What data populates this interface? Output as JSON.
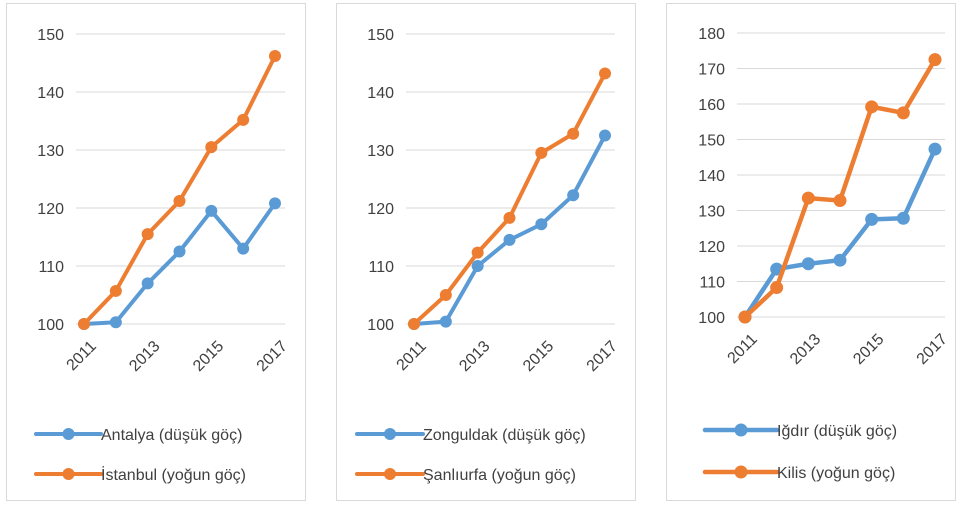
{
  "chart_data": [
    {
      "type": "line",
      "x": [
        "2011",
        "2012",
        "2013",
        "2014",
        "2015",
        "2016",
        "2017"
      ],
      "x_tick_labels": [
        "2011",
        "2013",
        "2015",
        "2017"
      ],
      "ylim": [
        100,
        150
      ],
      "yticks": [
        100,
        110,
        120,
        130,
        140,
        150
      ],
      "grid": true,
      "legend_position": "bottom",
      "series": [
        {
          "name": "Antalya (düşük göç)",
          "color": "#5b9bd5",
          "values": [
            100,
            100.3,
            107,
            112.5,
            119.5,
            113,
            120.8
          ]
        },
        {
          "name": "İstanbul (yoğun göç)",
          "color": "#ed7d31",
          "values": [
            100,
            105.7,
            115.5,
            121.2,
            130.5,
            135.2,
            146.2
          ]
        }
      ]
    },
    {
      "type": "line",
      "x": [
        "2011",
        "2012",
        "2013",
        "2014",
        "2015",
        "2016",
        "2017"
      ],
      "x_tick_labels": [
        "2011",
        "2013",
        "2015",
        "2017"
      ],
      "ylim": [
        100,
        150
      ],
      "yticks": [
        100,
        110,
        120,
        130,
        140,
        150
      ],
      "grid": true,
      "legend_position": "bottom",
      "series": [
        {
          "name": "Zonguldak (düşük göç)",
          "color": "#5b9bd5",
          "values": [
            100,
            100.4,
            110,
            114.5,
            117.2,
            122.2,
            132.5
          ]
        },
        {
          "name": "Şanlıurfa (yoğun göç)",
          "color": "#ed7d31",
          "values": [
            100,
            105,
            112.3,
            118.3,
            129.5,
            132.8,
            143.2
          ]
        }
      ]
    },
    {
      "type": "line",
      "x": [
        "2011",
        "2012",
        "2013",
        "2014",
        "2015",
        "2016",
        "2017"
      ],
      "x_tick_labels": [
        "2011",
        "2013",
        "2015",
        "2017"
      ],
      "ylim": [
        100,
        180
      ],
      "yticks": [
        100,
        110,
        120,
        130,
        140,
        150,
        160,
        170,
        180
      ],
      "grid": true,
      "legend_position": "bottom",
      "series": [
        {
          "name": "Iğdır (düşük göç)",
          "color": "#5b9bd5",
          "values": [
            100,
            113.5,
            115,
            116,
            127.5,
            127.8,
            147.3
          ]
        },
        {
          "name": "Kilis (yoğun göç)",
          "color": "#ed7d31",
          "values": [
            100,
            108.3,
            133.5,
            132.8,
            159.2,
            157.5,
            172.5
          ]
        }
      ]
    }
  ]
}
